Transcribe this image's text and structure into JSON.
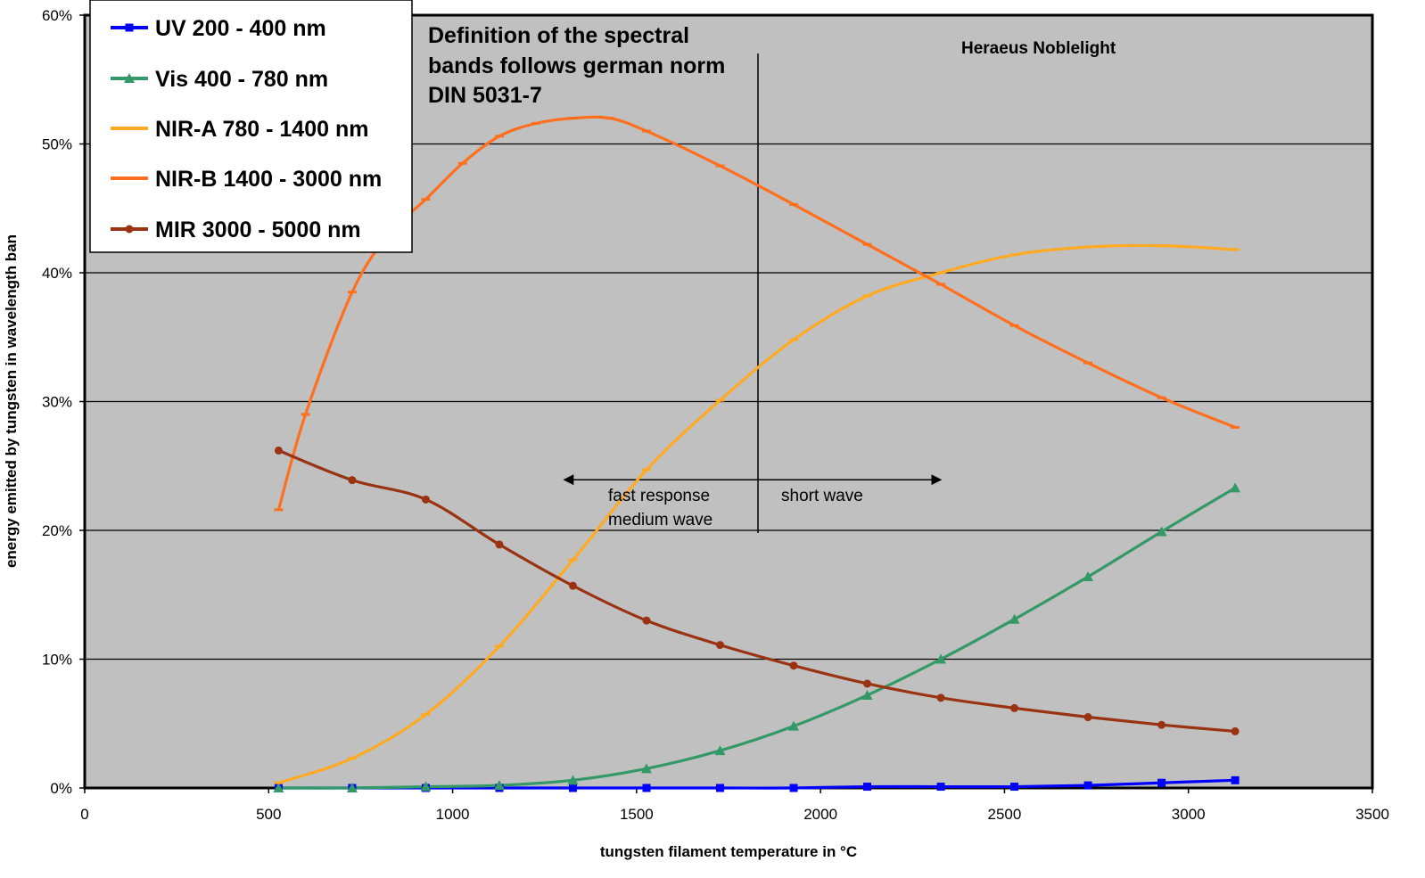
{
  "chart_data": {
    "type": "line",
    "xlabel": "tungsten filament temperature in °C",
    "ylabel": "energy emitted by tungsten in wavelength ban",
    "xlim": [
      0,
      3500
    ],
    "ylim": [
      0,
      60
    ],
    "x_ticks": [
      0,
      500,
      1000,
      1500,
      2000,
      2500,
      3000,
      3500
    ],
    "y_ticks": [
      0,
      10,
      20,
      30,
      40,
      50,
      60
    ],
    "y_tick_labels": [
      "0%",
      "10%",
      "20%",
      "30%",
      "40%",
      "50%",
      "60%"
    ],
    "grid": "horizontal",
    "plot_background": "#c0c0c0",
    "legend_position": "top-left",
    "series": [
      {
        "name": "UV 200 - 400 nm",
        "color": "#0000ff",
        "marker": "square",
        "x": [
          527,
          727,
          927,
          1127,
          1327,
          1527,
          1727,
          1927,
          2127,
          2327,
          2527,
          2727,
          2927,
          3127
        ],
        "y": [
          0,
          0,
          0,
          0,
          0,
          0,
          0,
          0,
          0.1,
          0.1,
          0.1,
          0.2,
          0.4,
          0.6
        ]
      },
      {
        "name": "Vis 400 - 780 nm",
        "color": "#339966",
        "marker": "triangle",
        "x": [
          527,
          727,
          927,
          1127,
          1327,
          1527,
          1727,
          1927,
          2127,
          2327,
          2527,
          2727,
          2927,
          3127
        ],
        "y": [
          0,
          0,
          0.1,
          0.2,
          0.6,
          1.5,
          2.9,
          4.8,
          7.2,
          10.0,
          13.1,
          16.4,
          19.9,
          23.3
        ]
      },
      {
        "name": "NIR-A 780 - 1400 nm",
        "color": "#ffaa22",
        "marker": "dash",
        "x": [
          527,
          727,
          927,
          1127,
          1327,
          1527,
          1727,
          1927,
          2127,
          2327,
          2527,
          2727,
          2927,
          3127
        ],
        "y": [
          0.4,
          2.3,
          5.7,
          11.0,
          17.7,
          24.7,
          30.1,
          34.8,
          38.2,
          40.0,
          41.4,
          42.0,
          42.1,
          41.8
        ]
      },
      {
        "name": "NIR-B 1400 - 3000 nm",
        "color": "#ff6f1e",
        "marker": "dash",
        "x": [
          527,
          600,
          727,
          827,
          927,
          1027,
          1127,
          1227,
          1327,
          1427,
          1527,
          1727,
          1927,
          2127,
          2327,
          2527,
          2727,
          2927,
          3127
        ],
        "y": [
          21.6,
          29.0,
          38.5,
          43.0,
          45.7,
          48.5,
          50.6,
          51.6,
          52.0,
          52.0,
          51.0,
          48.3,
          45.3,
          42.2,
          39.1,
          35.9,
          33.0,
          30.3,
          28.0
        ]
      },
      {
        "name": "MIR 3000 - 5000 nm",
        "color": "#993311",
        "marker": "circle",
        "x": [
          527,
          727,
          927,
          1127,
          1327,
          1527,
          1727,
          1927,
          2127,
          2327,
          2527,
          2727,
          2927,
          3127
        ],
        "y": [
          26.2,
          23.9,
          22.4,
          18.9,
          15.7,
          13.0,
          11.1,
          9.5,
          8.1,
          7.0,
          6.2,
          5.5,
          4.9,
          4.4
        ]
      }
    ],
    "annotations": {
      "definition_lines": [
        "Definition of the spectral",
        "bands follows german norm",
        "DIN 5031-7"
      ],
      "brand": "Heraeus Noblelight",
      "divider_x": 1830,
      "arrow_x_range": [
        1300,
        2330
      ],
      "arrow_y": 24,
      "left_label_lines": [
        "fast response",
        "medium wave"
      ],
      "right_label": "short wave"
    }
  }
}
